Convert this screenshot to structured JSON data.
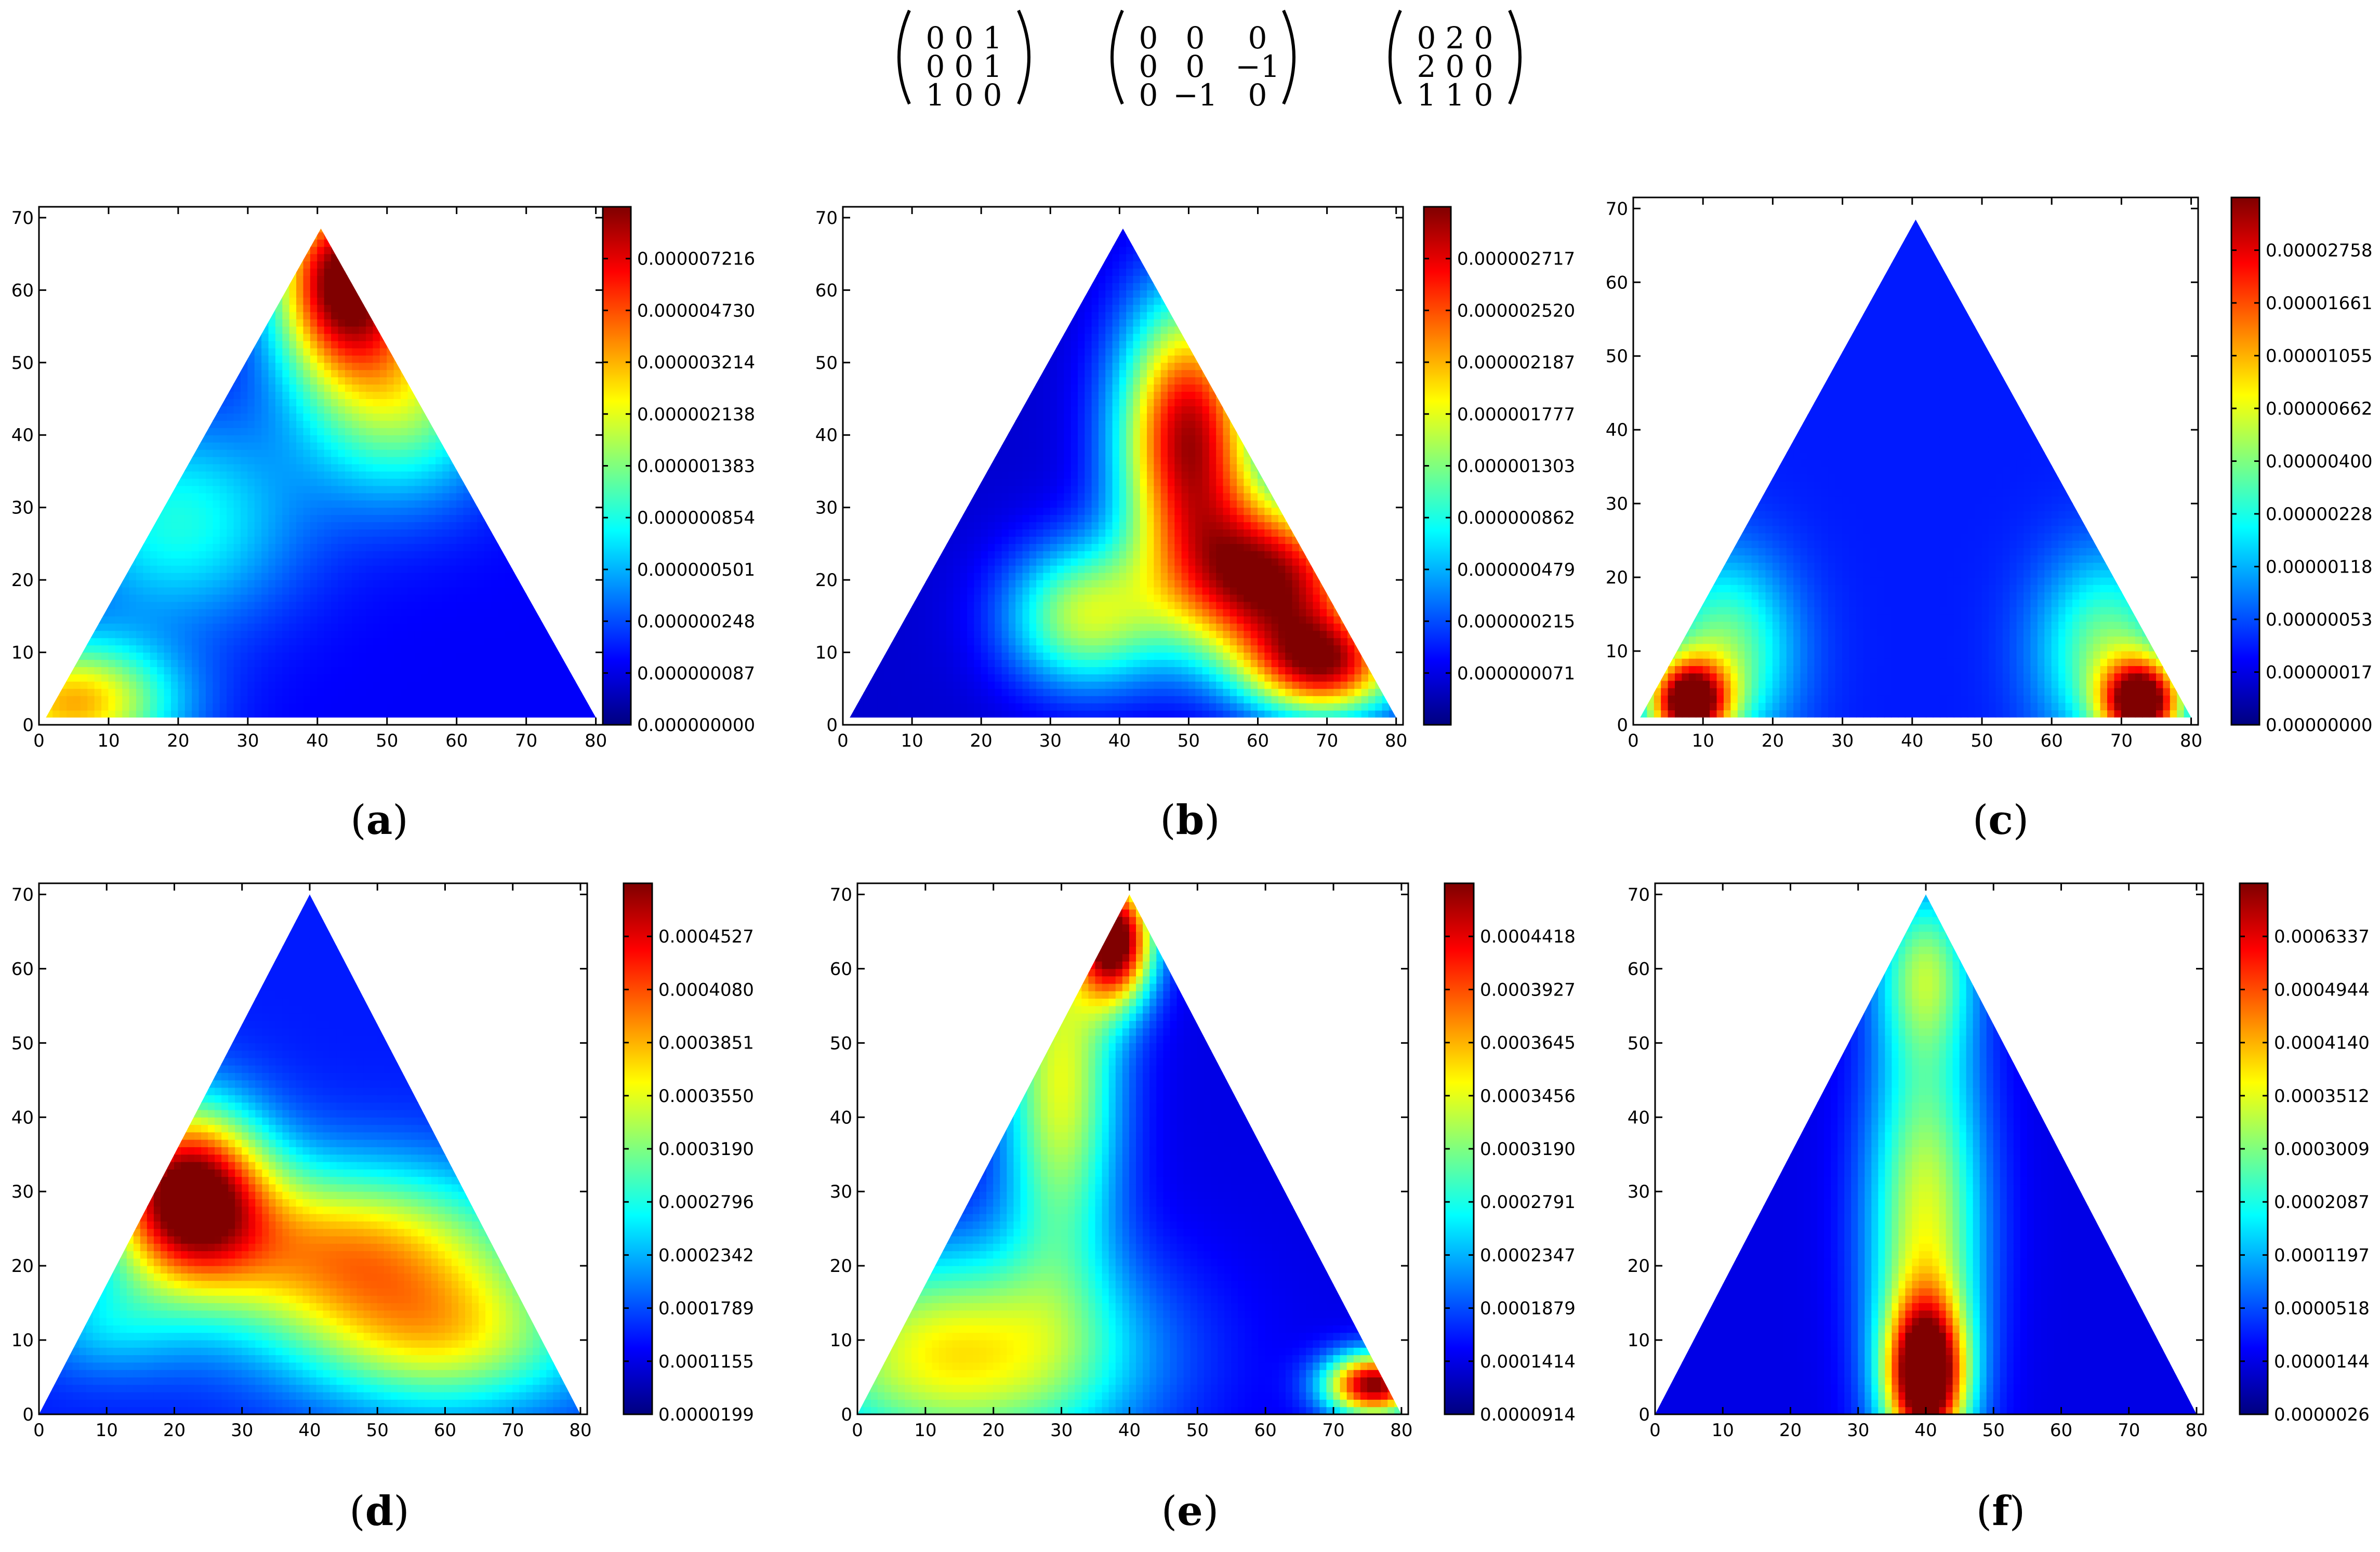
{
  "matrices": [
    {
      "rows": [
        [
          "0",
          "0",
          "1"
        ],
        [
          "0",
          "0",
          "1"
        ],
        [
          "1",
          "0",
          "0"
        ]
      ]
    },
    {
      "rows": [
        [
          "0",
          "0",
          "0"
        ],
        [
          "0",
          "0",
          "−1"
        ],
        [
          "0",
          "−1",
          "0"
        ]
      ]
    },
    {
      "rows": [
        [
          "0",
          "2",
          "0"
        ],
        [
          "2",
          "0",
          "0"
        ],
        [
          "1",
          "1",
          "0"
        ]
      ]
    }
  ],
  "colors": {
    "jet": [
      "#00007f",
      "#0000ff",
      "#007fff",
      "#00ffff",
      "#7fff7f",
      "#ffff00",
      "#ff7f00",
      "#ff0000",
      "#7f0000"
    ]
  },
  "chart_data": [
    {
      "type": "heatmap",
      "label_letter": "a",
      "x_ticks": [
        "0",
        "10",
        "20",
        "30",
        "40",
        "50",
        "60",
        "70",
        "80"
      ],
      "y_ticks": [
        "0",
        "10",
        "20",
        "30",
        "40",
        "50",
        "60",
        "70"
      ],
      "xlim": [
        0,
        81
      ],
      "ylim": [
        0,
        71.5
      ],
      "triangle": [
        [
          1,
          1
        ],
        [
          80,
          1
        ],
        [
          40.5,
          68.5
        ]
      ],
      "colorbar_ticks": [
        "0.000000000",
        "0.000000087",
        "0.000000248",
        "0.000000501",
        "0.000000854",
        "0.000001383",
        "0.000002138",
        "0.000003214",
        "0.000004730",
        "0.000007216"
      ],
      "colorbar_levels": [
        0.0,
        0.1,
        0.2,
        0.3,
        0.4,
        0.5,
        0.6,
        0.7,
        0.8,
        0.9
      ],
      "hotspots": [
        {
          "x": 44,
          "y": 62,
          "level": 1.0,
          "sx": 7,
          "sy": 9
        },
        {
          "x": 5,
          "y": 3,
          "level": 0.7,
          "sx": 10,
          "sy": 6
        },
        {
          "x": 52,
          "y": 46,
          "level": 0.55,
          "sx": 10,
          "sy": 10
        },
        {
          "x": 20,
          "y": 28,
          "level": 0.4,
          "sx": 12,
          "sy": 10
        }
      ],
      "base_level": 0.12
    },
    {
      "type": "heatmap",
      "label_letter": "b",
      "x_ticks": [
        "0",
        "10",
        "20",
        "30",
        "40",
        "50",
        "60",
        "70",
        "80"
      ],
      "y_ticks": [
        "0",
        "10",
        "20",
        "30",
        "40",
        "50",
        "60",
        "70"
      ],
      "xlim": [
        0,
        81
      ],
      "ylim": [
        0,
        71.5
      ],
      "triangle": [
        [
          1,
          1
        ],
        [
          80,
          1
        ],
        [
          40.5,
          68.5
        ]
      ],
      "colorbar_ticks": [
        "0.000000071",
        "0.000000215",
        "0.000000479",
        "0.000000862",
        "0.000001303",
        "0.000001777",
        "0.000002187",
        "0.000002520",
        "0.000002717"
      ],
      "colorbar_levels": [
        0.1,
        0.2,
        0.3,
        0.4,
        0.5,
        0.6,
        0.7,
        0.8,
        0.9
      ],
      "hotspots": [
        {
          "x": 50,
          "y": 40,
          "level": 0.95,
          "sx": 7,
          "sy": 13
        },
        {
          "x": 62,
          "y": 20,
          "level": 0.95,
          "sx": 10,
          "sy": 8
        },
        {
          "x": 35,
          "y": 15,
          "level": 0.55,
          "sx": 8,
          "sy": 7
        },
        {
          "x": 70,
          "y": 8,
          "level": 0.8,
          "sx": 8,
          "sy": 5
        }
      ],
      "base_level": 0.08
    },
    {
      "type": "heatmap",
      "label_letter": "c",
      "x_ticks": [
        "0",
        "10",
        "20",
        "30",
        "40",
        "50",
        "60",
        "70",
        "80"
      ],
      "y_ticks": [
        "0",
        "10",
        "20",
        "30",
        "40",
        "50",
        "60",
        "70"
      ],
      "xlim": [
        0,
        81
      ],
      "ylim": [
        0,
        71.5
      ],
      "triangle": [
        [
          1,
          1
        ],
        [
          80,
          1
        ],
        [
          40.5,
          68.5
        ]
      ],
      "colorbar_ticks": [
        "0.00000000",
        "0.00000017",
        "0.00000053",
        "0.00000118",
        "0.00000228",
        "0.00000400",
        "0.00000662",
        "0.00001055",
        "0.00001661",
        "0.00002758"
      ],
      "colorbar_levels": [
        0.0,
        0.1,
        0.2,
        0.3,
        0.4,
        0.5,
        0.6,
        0.7,
        0.8,
        0.9
      ],
      "hotspots": [
        {
          "x": 8,
          "y": 3,
          "level": 1.0,
          "sx": 4,
          "sy": 4
        },
        {
          "x": 73,
          "y": 3,
          "level": 1.0,
          "sx": 4,
          "sy": 4
        },
        {
          "x": 13,
          "y": 10,
          "level": 0.5,
          "sx": 7,
          "sy": 9
        },
        {
          "x": 68,
          "y": 10,
          "level": 0.5,
          "sx": 7,
          "sy": 9
        }
      ],
      "base_level": 0.15
    },
    {
      "type": "heatmap",
      "label_letter": "d",
      "x_ticks": [
        "0",
        "10",
        "20",
        "30",
        "40",
        "50",
        "60",
        "70",
        "80"
      ],
      "y_ticks": [
        "0",
        "10",
        "20",
        "30",
        "40",
        "50",
        "60",
        "70"
      ],
      "xlim": [
        0,
        81
      ],
      "ylim": [
        0,
        71.5
      ],
      "triangle": [
        [
          0,
          0
        ],
        [
          80,
          0
        ],
        [
          40,
          70
        ]
      ],
      "colorbar_ticks": [
        "0.0000199",
        "0.0001155",
        "0.0001789",
        "0.0002342",
        "0.0002796",
        "0.0003190",
        "0.0003550",
        "0.0003851",
        "0.0004080",
        "0.0004527"
      ],
      "colorbar_levels": [
        0.0,
        0.1,
        0.2,
        0.3,
        0.4,
        0.5,
        0.6,
        0.7,
        0.8,
        0.9
      ],
      "hotspots": [
        {
          "x": 22,
          "y": 30,
          "level": 1.0,
          "sx": 8,
          "sy": 8
        },
        {
          "x": 45,
          "y": 22,
          "level": 0.7,
          "sx": 18,
          "sy": 8
        },
        {
          "x": 60,
          "y": 10,
          "level": 0.55,
          "sx": 15,
          "sy": 7
        },
        {
          "x": 10,
          "y": 12,
          "level": 0.3,
          "sx": 8,
          "sy": 5
        }
      ],
      "base_level": 0.15
    },
    {
      "type": "heatmap",
      "label_letter": "e",
      "x_ticks": [
        "0",
        "10",
        "20",
        "30",
        "40",
        "50",
        "60",
        "70",
        "80"
      ],
      "y_ticks": [
        "0",
        "10",
        "20",
        "30",
        "40",
        "50",
        "60",
        "70"
      ],
      "xlim": [
        0,
        81
      ],
      "ylim": [
        0,
        71.5
      ],
      "triangle": [
        [
          0,
          0
        ],
        [
          80,
          0
        ],
        [
          40,
          70
        ]
      ],
      "colorbar_ticks": [
        "0.0000914",
        "0.0001414",
        "0.0001879",
        "0.0002347",
        "0.0002791",
        "0.0003190",
        "0.0003456",
        "0.0003645",
        "0.0003927",
        "0.0004418"
      ],
      "colorbar_levels": [
        0.0,
        0.1,
        0.2,
        0.3,
        0.4,
        0.5,
        0.6,
        0.7,
        0.8,
        0.9
      ],
      "hotspots": [
        {
          "x": 38,
          "y": 64,
          "level": 1.0,
          "sx": 4,
          "sy": 6
        },
        {
          "x": 76,
          "y": 4,
          "level": 1.0,
          "sx": 5,
          "sy": 3
        },
        {
          "x": 15,
          "y": 8,
          "level": 0.65,
          "sx": 18,
          "sy": 10
        },
        {
          "x": 30,
          "y": 45,
          "level": 0.6,
          "sx": 6,
          "sy": 18
        }
      ],
      "base_level": 0.1
    },
    {
      "type": "heatmap",
      "label_letter": "f",
      "x_ticks": [
        "0",
        "10",
        "20",
        "30",
        "40",
        "50",
        "60",
        "70",
        "80"
      ],
      "y_ticks": [
        "0",
        "10",
        "20",
        "30",
        "40",
        "50",
        "60",
        "70"
      ],
      "xlim": [
        0,
        81
      ],
      "ylim": [
        0,
        71.5
      ],
      "triangle": [
        [
          0,
          0
        ],
        [
          80,
          0
        ],
        [
          40,
          70
        ]
      ],
      "colorbar_ticks": [
        "0.0000026",
        "0.0000144",
        "0.0000518",
        "0.0001197",
        "0.0002087",
        "0.0003009",
        "0.0003512",
        "0.0004140",
        "0.0004944",
        "0.0006337"
      ],
      "colorbar_levels": [
        0.0,
        0.1,
        0.2,
        0.3,
        0.4,
        0.5,
        0.6,
        0.7,
        0.8,
        0.9
      ],
      "hotspots": [
        {
          "x": 40,
          "y": 5,
          "level": 1.0,
          "sx": 4,
          "sy": 7
        },
        {
          "x": 40,
          "y": 25,
          "level": 0.6,
          "sx": 6,
          "sy": 20
        },
        {
          "x": 40,
          "y": 60,
          "level": 0.45,
          "sx": 5,
          "sy": 8
        }
      ],
      "base_level": 0.1
    }
  ]
}
